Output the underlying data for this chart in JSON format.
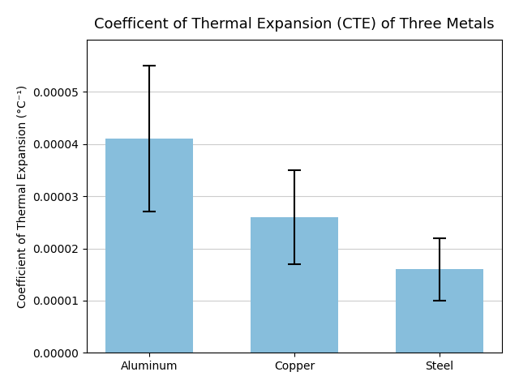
{
  "title": "Coefficent of Thermal Expansion (CTE) of Three Metals",
  "xlabel": "",
  "ylabel": "Coefficient of Thermal Expansion (°C⁻¹)",
  "categories": [
    "Aluminum",
    "Copper",
    "Steel"
  ],
  "values": [
    4.1e-05,
    2.6e-05,
    1.6e-05
  ],
  "std_devs": [
    1.4e-05,
    9e-06,
    6e-06
  ],
  "bar_color": "#87BEDC",
  "error_color": "black",
  "ylim": [
    0,
    6e-05
  ],
  "yticks": [
    0.0,
    1e-05,
    2e-05,
    3e-05,
    4e-05,
    5e-05
  ],
  "grid_color": "#CCCCCC",
  "background_color": "white",
  "title_fontsize": 13,
  "label_fontsize": 10,
  "tick_fontsize": 10,
  "bar_width": 0.6,
  "capsize": 6
}
